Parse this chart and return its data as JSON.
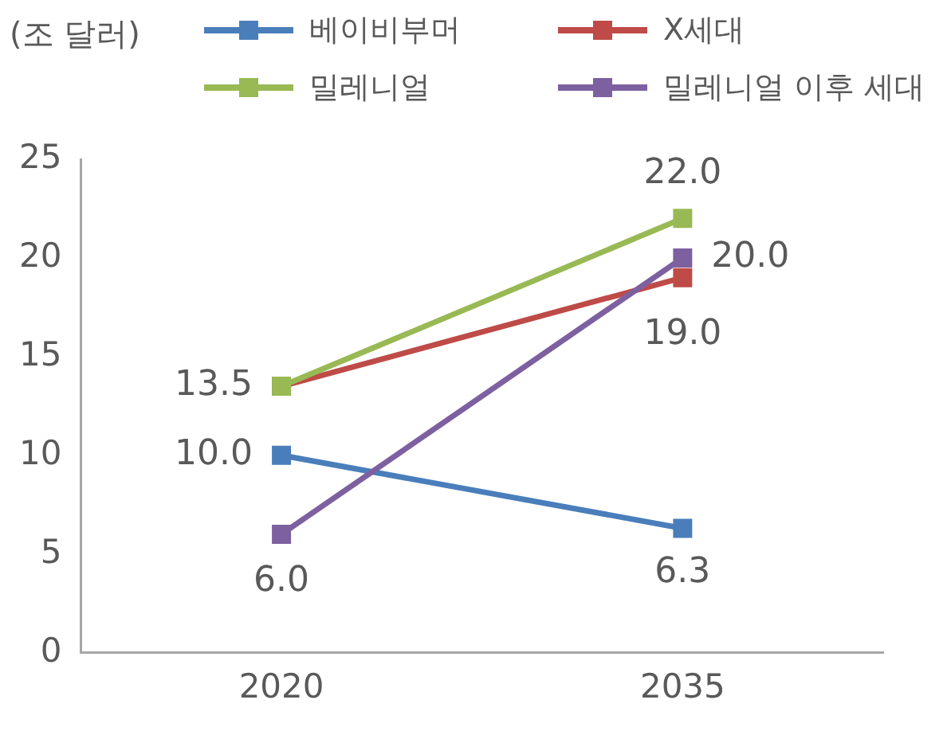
{
  "chart_data": {
    "type": "line",
    "ylabel": "(조 달러)",
    "categories": [
      "2020",
      "2035"
    ],
    "ylim": [
      0,
      25
    ],
    "yticks": [
      0,
      5,
      10,
      15,
      20,
      25
    ],
    "grid": false,
    "legend": "top",
    "marker": "square",
    "line_style": "solid",
    "series": [
      {
        "name": "베이비부머",
        "color": "#4a7ebb",
        "values": [
          10.0,
          6.3
        ],
        "value_labels": [
          "10.0",
          "6.3"
        ]
      },
      {
        "name": "X세대",
        "color": "#be4b48",
        "values": [
          13.5,
          19.0
        ],
        "value_labels": [
          "13.5",
          "19.0"
        ]
      },
      {
        "name": "밀레니얼",
        "color": "#98b954",
        "values": [
          13.5,
          22.0
        ],
        "value_labels": [
          null,
          "22.0"
        ]
      },
      {
        "name": "밀레니얼 이후 세대",
        "color": "#7d60a0",
        "values": [
          6.0,
          20.0
        ],
        "value_labels": [
          "6.0",
          "20.0"
        ]
      }
    ]
  }
}
